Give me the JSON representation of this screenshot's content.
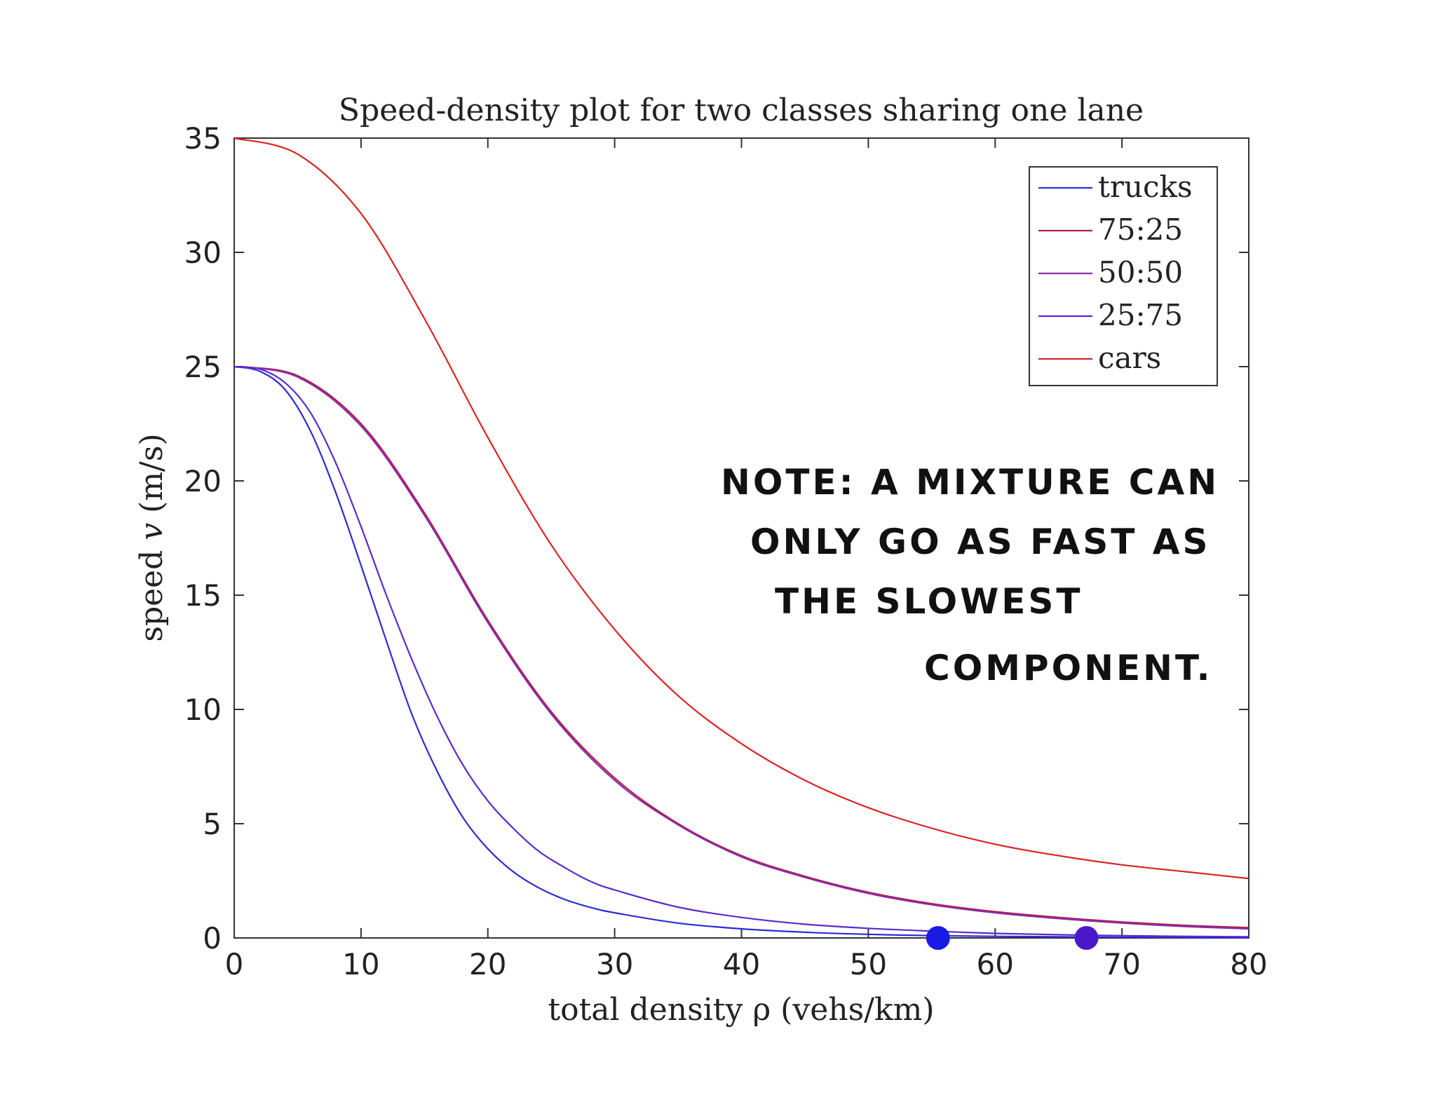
{
  "chart_data": {
    "type": "line",
    "title": "Speed-density plot for two classes sharing one lane",
    "xlabel": "total density ρ (vehs/km)",
    "ylabel_parts": [
      "speed ",
      "v",
      " (m/s)"
    ],
    "xlim": [
      0,
      80
    ],
    "ylim": [
      0,
      35
    ],
    "xticks": [
      "0",
      "10",
      "20",
      "30",
      "40",
      "50",
      "60",
      "70",
      "80"
    ],
    "yticks": [
      "0",
      "5",
      "10",
      "15",
      "20",
      "25",
      "30",
      "35"
    ],
    "legend_position": "top-right",
    "grid": false,
    "series": [
      {
        "name": "trucks",
        "color": "#2b2bd6",
        "x": [
          0,
          2,
          4,
          6,
          8,
          10,
          12,
          14,
          16,
          18,
          20,
          22,
          24,
          26,
          28,
          30,
          35,
          40,
          45,
          50,
          55,
          60,
          65,
          70,
          75,
          80
        ],
        "y": [
          25.0,
          24.8,
          24.0,
          22.2,
          19.5,
          16.3,
          13.0,
          9.8,
          7.3,
          5.3,
          3.9,
          2.9,
          2.2,
          1.7,
          1.35,
          1.1,
          0.65,
          0.4,
          0.25,
          0.16,
          0.1,
          0.07,
          0.05,
          0.03,
          0.02,
          0.01
        ]
      },
      {
        "name": "75:25",
        "color": "#b0204a",
        "x": [
          0,
          5,
          10,
          15,
          20,
          25,
          30,
          35,
          40,
          45,
          50,
          55,
          60,
          65,
          70,
          75,
          80
        ],
        "y": [
          25.0,
          24.6,
          22.5,
          18.6,
          13.9,
          9.9,
          7.0,
          5.0,
          3.6,
          2.7,
          2.0,
          1.5,
          1.15,
          0.9,
          0.7,
          0.55,
          0.45
        ]
      },
      {
        "name": "50:50",
        "color": "#8a2ab0",
        "x": [
          0,
          5,
          10,
          15,
          20,
          25,
          30,
          35,
          40,
          45,
          50,
          55,
          60,
          65,
          70,
          75,
          80
        ],
        "y": [
          25.0,
          24.55,
          22.4,
          18.5,
          13.8,
          9.8,
          6.9,
          4.95,
          3.55,
          2.65,
          1.95,
          1.45,
          1.1,
          0.85,
          0.65,
          0.5,
          0.4
        ]
      },
      {
        "name": "25:75",
        "color": "#5a2ad0",
        "x": [
          0,
          2,
          4,
          6,
          8,
          10,
          12,
          14,
          16,
          18,
          20,
          22,
          24,
          26,
          28,
          30,
          35,
          40,
          45,
          50,
          55,
          60,
          65,
          70,
          75,
          80
        ],
        "y": [
          25.0,
          24.9,
          24.3,
          23.0,
          20.8,
          18.0,
          15.0,
          12.2,
          9.7,
          7.6,
          6.0,
          4.8,
          3.8,
          3.1,
          2.5,
          2.1,
          1.35,
          0.9,
          0.6,
          0.42,
          0.3,
          0.2,
          0.14,
          0.1,
          0.07,
          0.05
        ]
      },
      {
        "name": "cars",
        "color": "#dd2222",
        "x": [
          0,
          5,
          10,
          15,
          20,
          25,
          30,
          35,
          40,
          45,
          50,
          55,
          60,
          65,
          70,
          75,
          80
        ],
        "y": [
          35.0,
          34.3,
          31.7,
          27.1,
          21.9,
          17.2,
          13.5,
          10.6,
          8.5,
          6.9,
          5.7,
          4.8,
          4.1,
          3.6,
          3.2,
          2.9,
          2.6
        ]
      }
    ],
    "markers": [
      {
        "x": 55.5,
        "y": 0,
        "color": "#1a1ae6"
      },
      {
        "x": 67.2,
        "y": 0,
        "color": "#4a18cc"
      }
    ],
    "annotation_lines": [
      "NOTE: A MIXTURE CAN",
      "ONLY GO AS FAST AS",
      "THE SLOWEST",
      "COMPONENT."
    ]
  }
}
